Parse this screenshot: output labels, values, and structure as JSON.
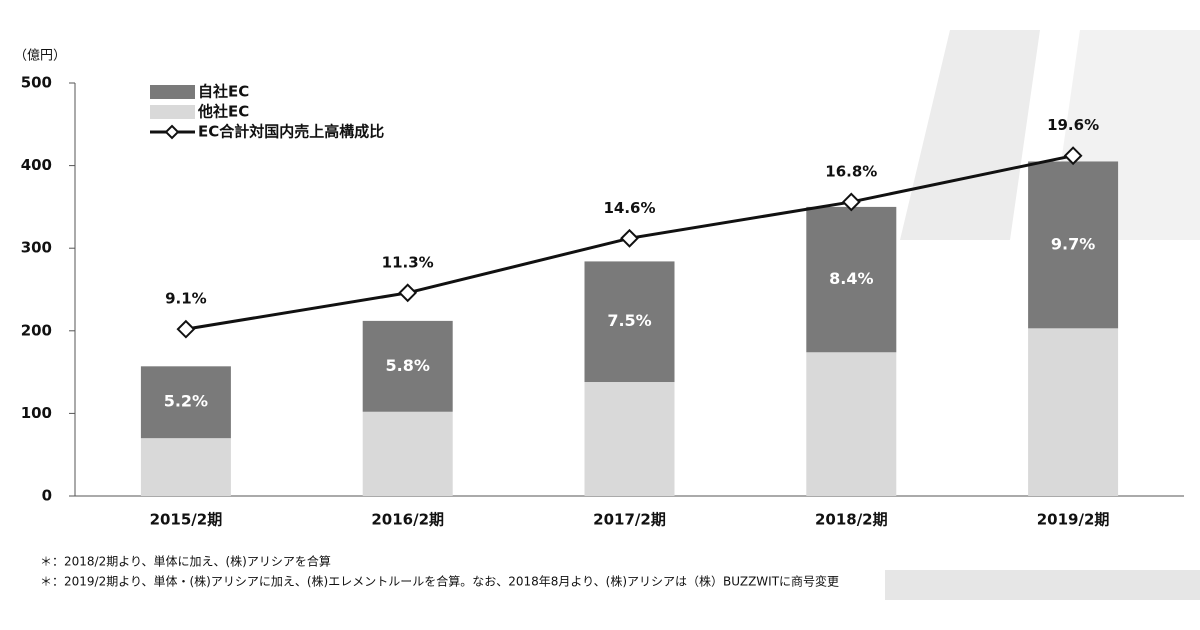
{
  "chart_data": {
    "type": "bar_line",
    "y_unit": "（億円）",
    "categories": [
      "2015/2期",
      "2016/2期",
      "2017/2期",
      "2018/2期",
      "2019/2期"
    ],
    "series": [
      {
        "name": "自社EC",
        "type": "bar",
        "color": "#7a7a7a",
        "values": [
          87,
          110,
          146,
          176,
          202
        ],
        "ratio_labels": [
          "5.2%",
          "5.8%",
          "7.5%",
          "8.4%",
          "9.7%"
        ]
      },
      {
        "name": "他社EC",
        "type": "bar",
        "color": "#d9d9d9",
        "values": [
          70,
          102,
          138,
          174,
          203
        ]
      },
      {
        "name": "EC合計対国内売上高構成比",
        "type": "line",
        "axis": "y2",
        "color": "#111111",
        "values": [
          9.1,
          11.3,
          14.6,
          16.8,
          19.6
        ],
        "value_labels": [
          "9.1%",
          "11.3%",
          "14.6%",
          "16.8%",
          "19.6%"
        ]
      }
    ],
    "ylim": [
      0,
      500
    ],
    "yticks": [
      0,
      100,
      200,
      300,
      400,
      500
    ],
    "y2lim": [
      -1,
      24
    ],
    "notes": [
      "＊：2018/2期より、単体に加え、(株)アリシアを合算",
      "＊：2019/2期より、単体・(株)アリシアに加え、(株)エレメントルールを合算。なお、2018年8月より、(株)アリシアは（株）BUZZWITに商号変更"
    ]
  }
}
